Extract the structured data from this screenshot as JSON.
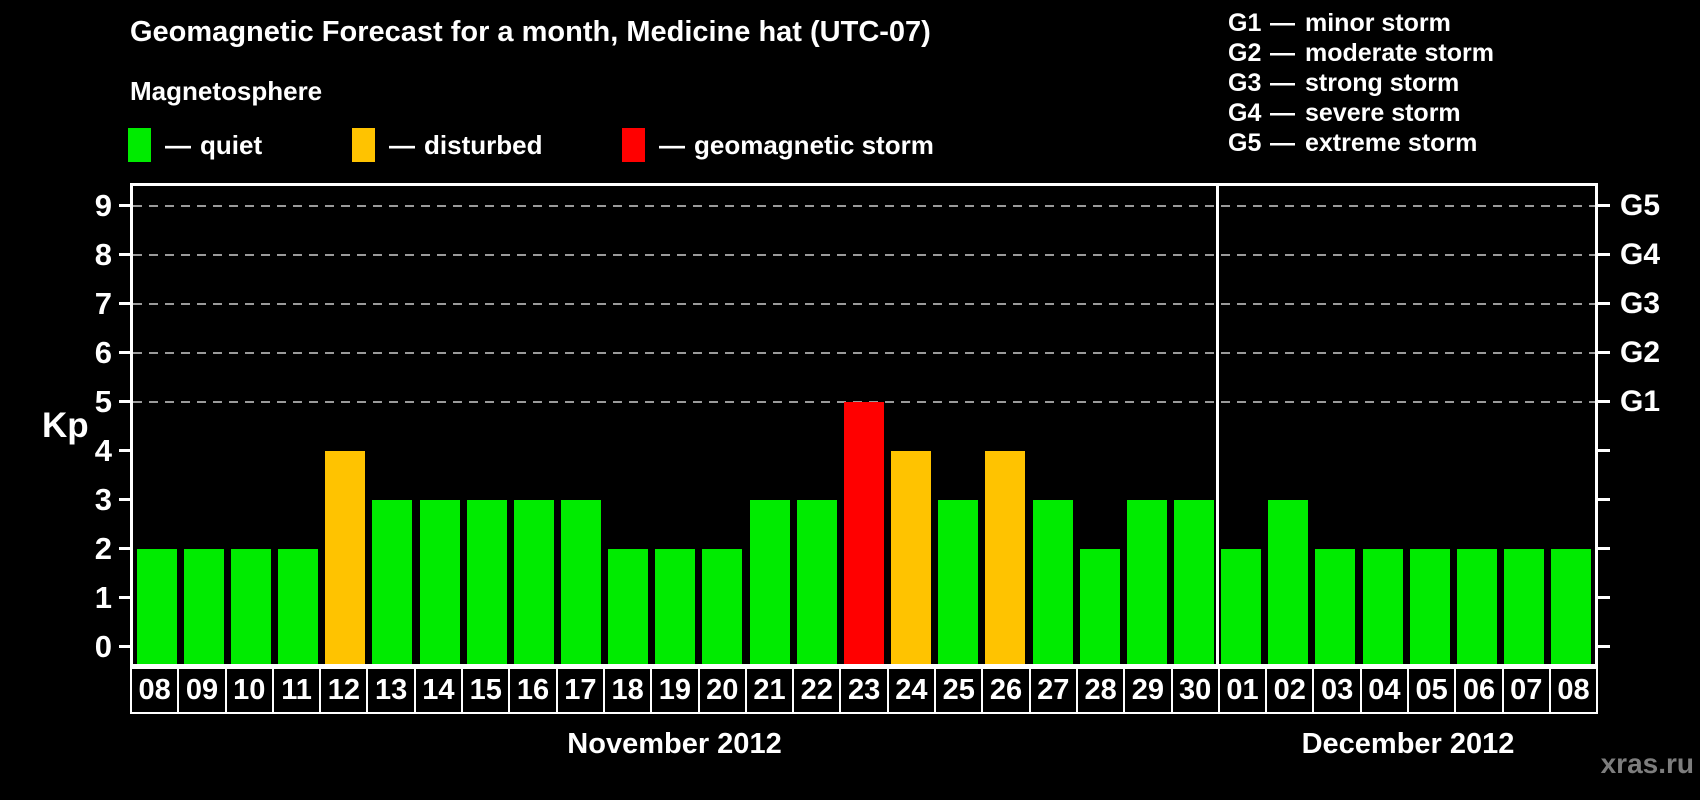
{
  "title": "Geomagnetic Forecast for a month, Medicine hat (UTC-07)",
  "watermark": "xras.ru",
  "separator_dash": "—",
  "legend": {
    "heading": "Magnetosphere",
    "items": [
      {
        "label": "quiet",
        "status": "quiet"
      },
      {
        "label": "disturbed",
        "status": "disturbed"
      },
      {
        "label": "geomagnetic storm",
        "status": "storm"
      }
    ]
  },
  "storm_scale": [
    {
      "code": "G1",
      "label": "minor storm"
    },
    {
      "code": "G2",
      "label": "moderate storm"
    },
    {
      "code": "G3",
      "label": "strong storm"
    },
    {
      "code": "G4",
      "label": "severe storm"
    },
    {
      "code": "G5",
      "label": "extreme storm"
    }
  ],
  "status_colors": {
    "quiet": "#00EB00",
    "disturbed": "#FFC300",
    "storm": "#FF0000"
  },
  "chart_data": {
    "type": "bar",
    "title": "Geomagnetic Forecast for a month, Medicine hat (UTC-07)",
    "ylabel": "Kp",
    "ylim": [
      0,
      9
    ],
    "yticks": [
      0,
      1,
      2,
      3,
      4,
      5,
      6,
      7,
      8,
      9
    ],
    "gridlines_at_kp": [
      5,
      6,
      7,
      8,
      9
    ],
    "grid": "dashed horizontal lines at Kp 5-9 only",
    "legend_position": "top-left",
    "right_axis": [
      {
        "kp": 5,
        "label": "G1"
      },
      {
        "kp": 6,
        "label": "G2"
      },
      {
        "kp": 7,
        "label": "G3"
      },
      {
        "kp": 8,
        "label": "G4"
      },
      {
        "kp": 9,
        "label": "G5"
      }
    ],
    "months": [
      {
        "label": "November 2012",
        "days": 23
      },
      {
        "label": "December 2012",
        "days": 8
      }
    ],
    "days": [
      {
        "day": "08",
        "kp": 2,
        "status": "quiet"
      },
      {
        "day": "09",
        "kp": 2,
        "status": "quiet"
      },
      {
        "day": "10",
        "kp": 2,
        "status": "quiet"
      },
      {
        "day": "11",
        "kp": 2,
        "status": "quiet"
      },
      {
        "day": "12",
        "kp": 4,
        "status": "disturbed"
      },
      {
        "day": "13",
        "kp": 3,
        "status": "quiet"
      },
      {
        "day": "14",
        "kp": 3,
        "status": "quiet"
      },
      {
        "day": "15",
        "kp": 3,
        "status": "quiet"
      },
      {
        "day": "16",
        "kp": 3,
        "status": "quiet"
      },
      {
        "day": "17",
        "kp": 3,
        "status": "quiet"
      },
      {
        "day": "18",
        "kp": 2,
        "status": "quiet"
      },
      {
        "day": "19",
        "kp": 2,
        "status": "quiet"
      },
      {
        "day": "20",
        "kp": 2,
        "status": "quiet"
      },
      {
        "day": "21",
        "kp": 3,
        "status": "quiet"
      },
      {
        "day": "22",
        "kp": 3,
        "status": "quiet"
      },
      {
        "day": "23",
        "kp": 5,
        "status": "storm"
      },
      {
        "day": "24",
        "kp": 4,
        "status": "disturbed"
      },
      {
        "day": "25",
        "kp": 3,
        "status": "quiet"
      },
      {
        "day": "26",
        "kp": 4,
        "status": "disturbed"
      },
      {
        "day": "27",
        "kp": 3,
        "status": "quiet"
      },
      {
        "day": "28",
        "kp": 2,
        "status": "quiet"
      },
      {
        "day": "29",
        "kp": 3,
        "status": "quiet"
      },
      {
        "day": "30",
        "kp": 3,
        "status": "quiet"
      },
      {
        "day": "01",
        "kp": 2,
        "status": "quiet"
      },
      {
        "day": "02",
        "kp": 3,
        "status": "quiet"
      },
      {
        "day": "03",
        "kp": 2,
        "status": "quiet"
      },
      {
        "day": "04",
        "kp": 2,
        "status": "quiet"
      },
      {
        "day": "05",
        "kp": 2,
        "status": "quiet"
      },
      {
        "day": "06",
        "kp": 2,
        "status": "quiet"
      },
      {
        "day": "07",
        "kp": 2,
        "status": "quiet"
      },
      {
        "day": "08",
        "kp": 2,
        "status": "quiet"
      }
    ]
  }
}
